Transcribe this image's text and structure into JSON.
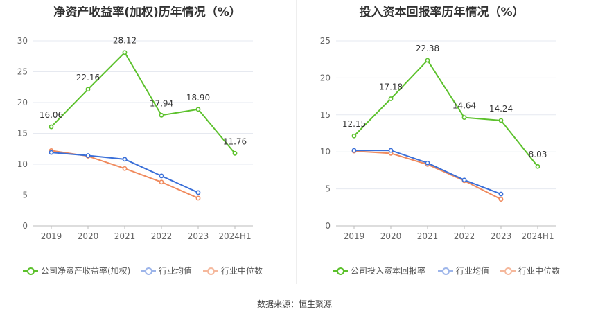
{
  "source": "数据来源：恒生聚源",
  "charts": [
    {
      "title": "净资产收益率(加权)历年情况（%）",
      "legend": [
        "公司净资产收益率(加权)",
        "行业均值",
        "行业中位数"
      ]
    },
    {
      "title": "投入资本回报率历年情况（%）",
      "legend": [
        "公司投入资本回报率",
        "行业均值",
        "行业中位数"
      ]
    }
  ],
  "colors": {
    "company": "#5cc12c",
    "mean": "#3a6fd8",
    "median": "#f08a5d"
  },
  "chart_data": [
    {
      "type": "line",
      "title": "净资产收益率(加权)历年情况（%）",
      "categories": [
        "2019",
        "2020",
        "2021",
        "2022",
        "2023",
        "2024H1"
      ],
      "ylim": [
        0,
        30
      ],
      "yticks": [
        0,
        5,
        10,
        15,
        20,
        25,
        30
      ],
      "grid": true,
      "legend_position": "bottom",
      "series": [
        {
          "name": "公司净资产收益率(加权)",
          "values": [
            16.06,
            22.16,
            28.12,
            17.94,
            18.9,
            11.76
          ],
          "labels": [
            "16.06",
            "22.16",
            "28.12",
            "17.94",
            "18.90",
            "11.76"
          ]
        },
        {
          "name": "行业均值",
          "values": [
            11.9,
            11.4,
            10.8,
            8.1,
            5.4,
            null
          ]
        },
        {
          "name": "行业中位数",
          "values": [
            12.2,
            11.3,
            9.3,
            7.1,
            4.5,
            null
          ]
        }
      ]
    },
    {
      "type": "line",
      "title": "投入资本回报率历年情况（%）",
      "categories": [
        "2019",
        "2020",
        "2021",
        "2022",
        "2023",
        "2024H1"
      ],
      "ylim": [
        0,
        25
      ],
      "yticks": [
        0,
        5,
        10,
        15,
        20,
        25
      ],
      "grid": true,
      "legend_position": "bottom",
      "series": [
        {
          "name": "公司投入资本回报率",
          "values": [
            12.15,
            17.18,
            22.38,
            14.64,
            14.24,
            8.03
          ],
          "labels": [
            "12.15",
            "17.18",
            "22.38",
            "14.64",
            "14.24",
            "8.03"
          ]
        },
        {
          "name": "行业均值",
          "values": [
            10.2,
            10.2,
            8.5,
            6.2,
            4.3,
            null
          ]
        },
        {
          "name": "行业中位数",
          "values": [
            10.1,
            9.8,
            8.3,
            6.1,
            3.6,
            null
          ]
        }
      ]
    }
  ]
}
